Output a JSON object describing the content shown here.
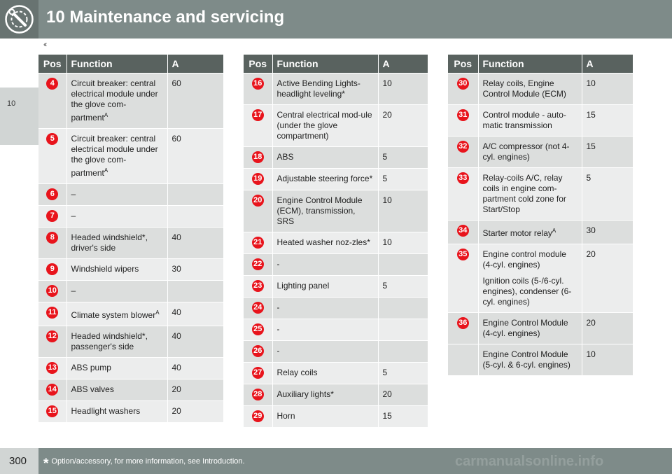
{
  "header": {
    "title": "10 Maintenance and servicing",
    "icon": "wrench-gear-icon"
  },
  "nav_arrows": "‹‹",
  "chapter_tab": "10",
  "footer": {
    "page_number": "300",
    "note_star": "*",
    "note": "Option/accessory, for more information, see Introduction."
  },
  "watermark": "carmanualsonline.info",
  "colors": {
    "header": "#7e8b89",
    "table_header": "#59625f",
    "badge": "#e8141c",
    "row_odd": "#dcdedd",
    "row_even": "#eceded"
  },
  "columns": {
    "pos": "Pos",
    "function": "Function",
    "amp": "A"
  },
  "tables": [
    {
      "rows": [
        {
          "pos": "4",
          "function": "Circuit breaker: central electrical module under the glove com-partment",
          "sup": "A",
          "amp": "60"
        },
        {
          "pos": "5",
          "function": "Circuit breaker: central electrical module under the glove com-partment",
          "sup": "A",
          "amp": "60"
        },
        {
          "pos": "6",
          "function": "–",
          "amp": ""
        },
        {
          "pos": "7",
          "function": "–",
          "amp": ""
        },
        {
          "pos": "8",
          "function": "Headed windshield*, driver's side",
          "amp": "40"
        },
        {
          "pos": "9",
          "function": "Windshield wipers",
          "amp": "30"
        },
        {
          "pos": "10",
          "function": "–",
          "amp": ""
        },
        {
          "pos": "11",
          "function": "Climate system blower",
          "sup": "A",
          "amp": "40"
        },
        {
          "pos": "12",
          "function": "Headed windshield*, passenger's side",
          "amp": "40"
        },
        {
          "pos": "13",
          "function": "ABS pump",
          "amp": "40"
        },
        {
          "pos": "14",
          "function": "ABS valves",
          "amp": "20"
        },
        {
          "pos": "15",
          "function": "Headlight washers",
          "amp": "20"
        }
      ]
    },
    {
      "rows": [
        {
          "pos": "16",
          "function": "Active Bending Lights-headlight leveling*",
          "amp": "10"
        },
        {
          "pos": "17",
          "function": "Central electrical mod-ule (under the glove compartment)",
          "amp": "20"
        },
        {
          "pos": "18",
          "function": "ABS",
          "amp": "5"
        },
        {
          "pos": "19",
          "function": "Adjustable steering force*",
          "amp": "5"
        },
        {
          "pos": "20",
          "function": "Engine Control Module (ECM), transmission, SRS",
          "amp": "10"
        },
        {
          "pos": "21",
          "function": "Heated washer noz-zles*",
          "amp": "10"
        },
        {
          "pos": "22",
          "function": "-",
          "amp": ""
        },
        {
          "pos": "23",
          "function": "Lighting panel",
          "amp": "5"
        },
        {
          "pos": "24",
          "function": "-",
          "amp": ""
        },
        {
          "pos": "25",
          "function": "-",
          "amp": ""
        },
        {
          "pos": "26",
          "function": "-",
          "amp": ""
        },
        {
          "pos": "27",
          "function": "Relay coils",
          "amp": "5"
        },
        {
          "pos": "28",
          "function": "Auxiliary lights*",
          "amp": "20"
        },
        {
          "pos": "29",
          "function": "Horn",
          "amp": "15"
        }
      ]
    },
    {
      "rows": [
        {
          "pos": "30",
          "function": "Relay coils, Engine Control Module (ECM)",
          "amp": "10"
        },
        {
          "pos": "31",
          "function": "Control module - auto-matic transmission",
          "amp": "15"
        },
        {
          "pos": "32",
          "function": "A/C compressor (not 4-cyl. engines)",
          "amp": "15"
        },
        {
          "pos": "33",
          "function": "Relay-coils A/C, relay coils in engine com-partment cold zone for Start/Stop",
          "amp": "5"
        },
        {
          "pos": "34",
          "function": "Starter motor relay",
          "sup": "A",
          "amp": "30"
        },
        {
          "pos": "35",
          "function": "Engine control module (4-cyl. engines)",
          "function2": "Ignition coils (5-/6-cyl. engines), condenser (6-cyl. engines)",
          "amp": "20"
        },
        {
          "pos": "36",
          "function": "Engine Control Module (4-cyl. engines)",
          "amp": "20"
        },
        {
          "pos": "",
          "function": "Engine Control Module (5-cyl. & 6-cyl. engines)",
          "amp": "10"
        }
      ]
    }
  ]
}
